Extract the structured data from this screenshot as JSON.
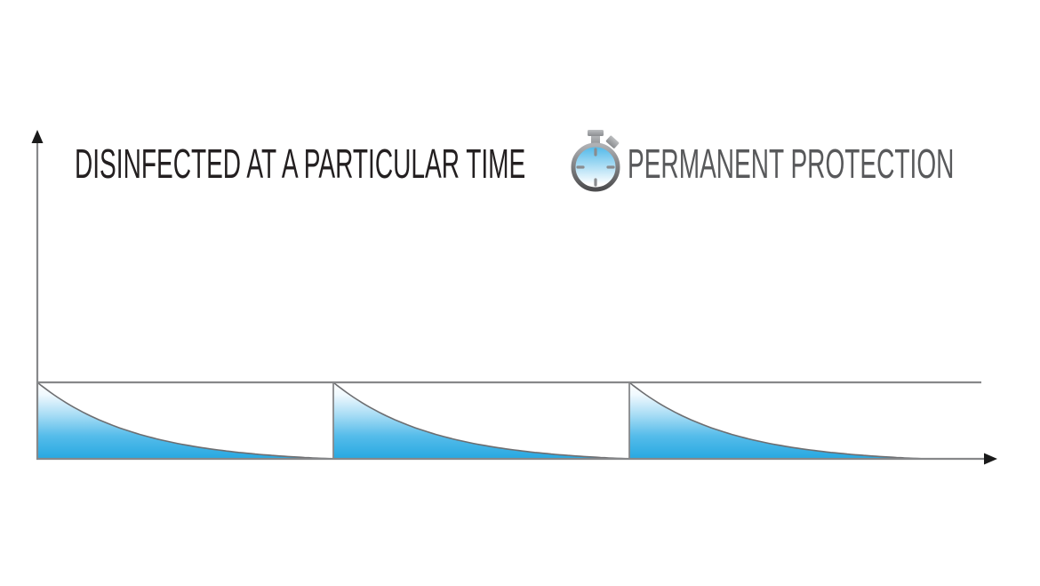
{
  "page": {
    "background": "#FFFFFF"
  },
  "legend": {
    "items": [
      {
        "label": "DISINFECTED AT A PARTICULAR TIME",
        "color": "#231F20",
        "icon": "none"
      },
      {
        "label": "PERMANENT PROTECTION",
        "color": "#58595B",
        "icon": "stopwatch-icon"
      }
    ]
  },
  "chart_data": {
    "type": "area",
    "title": "",
    "xlabel": "",
    "ylabel": "",
    "grid": false,
    "x_axis": {
      "arrow": true,
      "tick_labels": [],
      "range_periods": [
        0,
        3.24
      ]
    },
    "y_axis": {
      "arrow": true,
      "tick_labels": [],
      "range_levels": [
        0,
        1
      ]
    },
    "series": [
      {
        "name": "DISINFECTED AT A PARTICULAR TIME",
        "kind": "repeated-decay-area",
        "segment_starts": [
          0,
          1,
          2
        ],
        "segment_width": 1,
        "start_level": 1,
        "decay": "exponential",
        "decay_constant": 3,
        "decay_profile_t_level": [
          [
            0,
            1
          ],
          [
            0.1,
            0.73
          ],
          [
            0.2,
            0.53
          ],
          [
            0.33,
            0.34
          ],
          [
            0.5,
            0.18
          ],
          [
            0.75,
            0.06
          ],
          [
            1,
            0
          ]
        ],
        "fill": "vertical-blue-gradient",
        "stroke_color": "#6D6E71"
      },
      {
        "name": "PERMANENT PROTECTION",
        "kind": "constant-line",
        "level": 1,
        "x_start": 0,
        "x_end": 3.19,
        "stroke_color": "#87888A"
      }
    ]
  },
  "colors": {
    "background": "#FFFFFF",
    "title_dark": "#231F20",
    "title_gray": "#58595B",
    "axis_line": "#87888A",
    "arrow": "#1A1A1A",
    "curve_stroke": "#6D6E71",
    "area_blue": "#27A8E1",
    "area_gradient": [
      [
        "0%",
        "#FFFFFF"
      ],
      [
        "16%",
        "#F0F9FE"
      ],
      [
        "42%",
        "#A9DDF5"
      ],
      [
        "70%",
        "#55BCEA"
      ],
      [
        "100%",
        "#27A8E1"
      ]
    ],
    "sw_ring_top": "#AFB1B4",
    "sw_ring_bottom": "#4D4D4F",
    "sw_face_top": "#4AB6E8",
    "sw_face_bottom": "#FFFFFF",
    "sw_metal_light": "#BCBEC0",
    "sw_metal_dark": "#8A8C8F",
    "sw_tick": "#8A8C8F"
  }
}
